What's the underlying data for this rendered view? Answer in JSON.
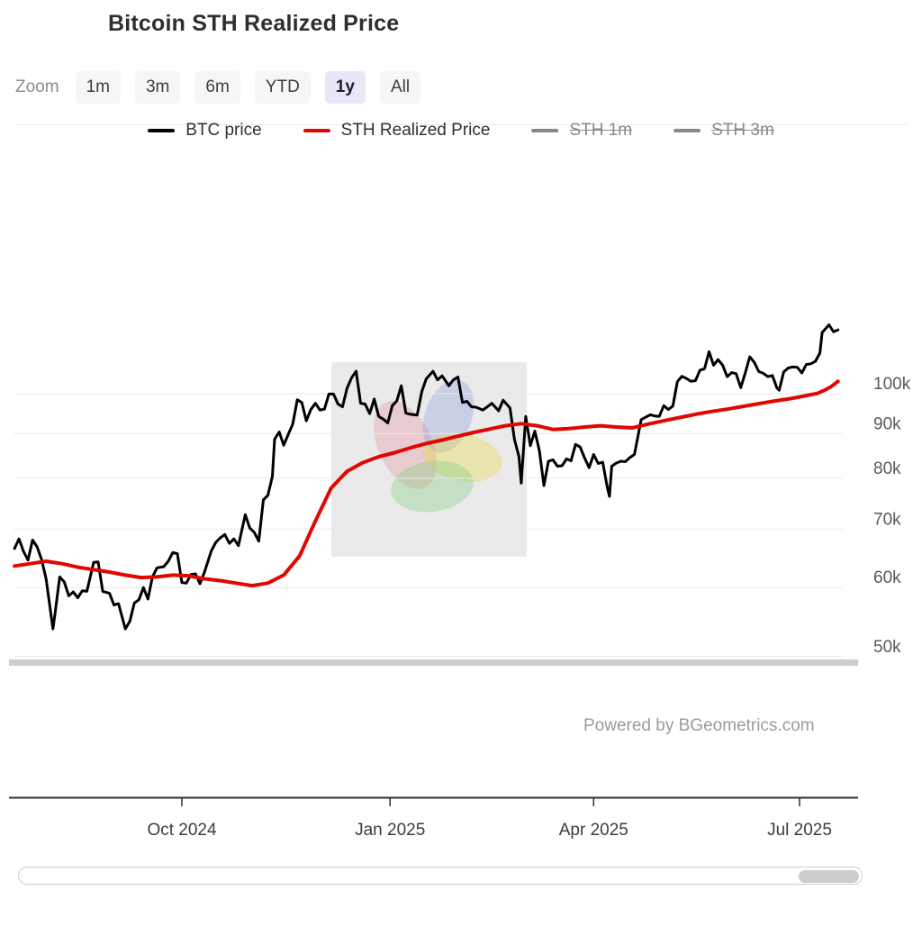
{
  "page": {
    "title": "Bitcoin STH Realized Price"
  },
  "range_selector": {
    "label": "Zoom",
    "buttons": [
      {
        "label": "1m",
        "active": false
      },
      {
        "label": "3m",
        "active": false
      },
      {
        "label": "6m",
        "active": false
      },
      {
        "label": "YTD",
        "active": false
      },
      {
        "label": "1y",
        "active": true
      },
      {
        "label": "All",
        "active": false
      }
    ]
  },
  "legend": {
    "items": [
      {
        "label": "BTC price",
        "color": "#000000",
        "disabled": false
      },
      {
        "label": "STH Realized Price",
        "color": "#e10600",
        "disabled": false
      },
      {
        "label": "STH 1m",
        "color": "#888888",
        "disabled": true
      },
      {
        "label": "STH 3m",
        "color": "#888888",
        "disabled": true
      }
    ]
  },
  "credit": {
    "text": "Powered by BGeometrics.com"
  },
  "colors": {
    "grid": "#e8e8e8",
    "axis": "#2f2f2f",
    "y_label": "#5a5a5a",
    "x_label": "#3d3d3d",
    "bottom_band": "#cdcdcd",
    "active_button_bg": "#e7e7f8"
  },
  "chart_data": {
    "type": "line",
    "title": "Bitcoin STH Realized Price",
    "xlabel": "",
    "ylabel": "",
    "yscale": "log",
    "grid": true,
    "legend_position": "top",
    "ylim": [
      48000,
      125000
    ],
    "y_ticks": [
      {
        "value": 100000,
        "label": "100k"
      },
      {
        "value": 90000,
        "label": "90k"
      },
      {
        "value": 80000,
        "label": "80k"
      },
      {
        "value": 70000,
        "label": "70k"
      },
      {
        "value": 60000,
        "label": "60k"
      },
      {
        "value": 50000,
        "label": "50k"
      }
    ],
    "x_ticks": [
      {
        "date": "2024-10-01",
        "label": "Oct 2024"
      },
      {
        "date": "2025-01-01",
        "label": "Jan 2025"
      },
      {
        "date": "2025-04-01",
        "label": "Apr 2025"
      },
      {
        "date": "2025-07-01",
        "label": "Jul 2025"
      }
    ],
    "layout": {
      "x_anchors": [
        [
          "2024-10-01",
          202
        ],
        [
          "2025-07-01",
          888
        ]
      ],
      "y_anchors": [
        [
          100000,
          437
        ],
        [
          50000,
          729
        ]
      ],
      "plot_x": [
        16,
        935
      ],
      "axis_x": [
        10,
        953
      ],
      "axis_y": 885,
      "y_label_x": 970,
      "x_label_y": 927,
      "bottom_band": {
        "y": 732,
        "height": 7
      }
    },
    "series": [
      {
        "name": "BTC price",
        "color": "#000000",
        "width": 3,
        "visible": true,
        "points": [
          [
            "2024-07-19",
            66500
          ],
          [
            "2024-07-21",
            68200
          ],
          [
            "2024-07-23",
            66000
          ],
          [
            "2024-07-25",
            64500
          ],
          [
            "2024-07-27",
            68000
          ],
          [
            "2024-07-29",
            66800
          ],
          [
            "2024-07-31",
            64600
          ],
          [
            "2024-08-02",
            61400
          ],
          [
            "2024-08-05",
            53800
          ],
          [
            "2024-08-06",
            56200
          ],
          [
            "2024-08-08",
            61700
          ],
          [
            "2024-08-10",
            60900
          ],
          [
            "2024-08-12",
            58700
          ],
          [
            "2024-08-14",
            59300
          ],
          [
            "2024-08-16",
            58400
          ],
          [
            "2024-08-18",
            59500
          ],
          [
            "2024-08-20",
            59400
          ],
          [
            "2024-08-23",
            64100
          ],
          [
            "2024-08-25",
            64200
          ],
          [
            "2024-08-27",
            59400
          ],
          [
            "2024-08-30",
            59100
          ],
          [
            "2024-09-01",
            57300
          ],
          [
            "2024-09-03",
            57500
          ],
          [
            "2024-09-06",
            53800
          ],
          [
            "2024-09-08",
            54900
          ],
          [
            "2024-09-10",
            57600
          ],
          [
            "2024-09-12",
            58100
          ],
          [
            "2024-09-14",
            60000
          ],
          [
            "2024-09-16",
            58200
          ],
          [
            "2024-09-18",
            61700
          ],
          [
            "2024-09-20",
            63200
          ],
          [
            "2024-09-23",
            63400
          ],
          [
            "2024-09-25",
            64300
          ],
          [
            "2024-09-27",
            65800
          ],
          [
            "2024-09-29",
            65600
          ],
          [
            "2024-10-01",
            60800
          ],
          [
            "2024-10-03",
            60700
          ],
          [
            "2024-10-05",
            62100
          ],
          [
            "2024-10-07",
            62200
          ],
          [
            "2024-10-09",
            60600
          ],
          [
            "2024-10-11",
            62500
          ],
          [
            "2024-10-14",
            66100
          ],
          [
            "2024-10-16",
            67600
          ],
          [
            "2024-10-18",
            68400
          ],
          [
            "2024-10-20",
            69000
          ],
          [
            "2024-10-22",
            67400
          ],
          [
            "2024-10-24",
            68200
          ],
          [
            "2024-10-26",
            67000
          ],
          [
            "2024-10-29",
            72700
          ],
          [
            "2024-10-31",
            70200
          ],
          [
            "2024-11-02",
            69400
          ],
          [
            "2024-11-04",
            67800
          ],
          [
            "2024-11-06",
            75600
          ],
          [
            "2024-11-08",
            76500
          ],
          [
            "2024-11-10",
            80400
          ],
          [
            "2024-11-11",
            88700
          ],
          [
            "2024-11-13",
            90400
          ],
          [
            "2024-11-15",
            87300
          ],
          [
            "2024-11-17",
            89800
          ],
          [
            "2024-11-19",
            92300
          ],
          [
            "2024-11-21",
            98400
          ],
          [
            "2024-11-23",
            97700
          ],
          [
            "2024-11-25",
            93100
          ],
          [
            "2024-11-27",
            95900
          ],
          [
            "2024-11-29",
            97500
          ],
          [
            "2024-12-01",
            95800
          ],
          [
            "2024-12-03",
            96000
          ],
          [
            "2024-12-05",
            99900
          ],
          [
            "2024-12-07",
            99900
          ],
          [
            "2024-12-09",
            97300
          ],
          [
            "2024-12-11",
            96600
          ],
          [
            "2024-12-13",
            101400
          ],
          [
            "2024-12-15",
            104300
          ],
          [
            "2024-12-17",
            106100
          ],
          [
            "2024-12-19",
            97500
          ],
          [
            "2024-12-21",
            97300
          ],
          [
            "2024-12-23",
            94900
          ],
          [
            "2024-12-25",
            98600
          ],
          [
            "2024-12-27",
            94200
          ],
          [
            "2024-12-29",
            93500
          ],
          [
            "2024-12-31",
            92600
          ],
          [
            "2025-01-02",
            96900
          ],
          [
            "2025-01-04",
            98100
          ],
          [
            "2025-01-06",
            102100
          ],
          [
            "2025-01-08",
            95000
          ],
          [
            "2025-01-10",
            94700
          ],
          [
            "2025-01-13",
            94500
          ],
          [
            "2025-01-15",
            100500
          ],
          [
            "2025-01-17",
            104000
          ],
          [
            "2025-01-20",
            106100
          ],
          [
            "2025-01-22",
            103700
          ],
          [
            "2025-01-24",
            104800
          ],
          [
            "2025-01-27",
            102100
          ],
          [
            "2025-01-29",
            103700
          ],
          [
            "2025-01-31",
            104500
          ],
          [
            "2025-02-02",
            97700
          ],
          [
            "2025-02-04",
            98000
          ],
          [
            "2025-02-06",
            96600
          ],
          [
            "2025-02-08",
            96500
          ],
          [
            "2025-02-11",
            95800
          ],
          [
            "2025-02-13",
            96600
          ],
          [
            "2025-02-15",
            97500
          ],
          [
            "2025-02-18",
            95600
          ],
          [
            "2025-02-20",
            98300
          ],
          [
            "2025-02-23",
            96300
          ],
          [
            "2025-02-25",
            88600
          ],
          [
            "2025-02-27",
            84700
          ],
          [
            "2025-02-28",
            79000
          ],
          [
            "2025-03-02",
            94200
          ],
          [
            "2025-03-04",
            87200
          ],
          [
            "2025-03-06",
            90600
          ],
          [
            "2025-03-08",
            86100
          ],
          [
            "2025-03-10",
            78500
          ],
          [
            "2025-03-12",
            83700
          ],
          [
            "2025-03-14",
            84000
          ],
          [
            "2025-03-16",
            82600
          ],
          [
            "2025-03-18",
            82700
          ],
          [
            "2025-03-20",
            84200
          ],
          [
            "2025-03-22",
            83800
          ],
          [
            "2025-03-24",
            87500
          ],
          [
            "2025-03-26",
            86900
          ],
          [
            "2025-03-28",
            84400
          ],
          [
            "2025-03-30",
            82300
          ],
          [
            "2025-04-01",
            85200
          ],
          [
            "2025-04-03",
            83200
          ],
          [
            "2025-04-05",
            83500
          ],
          [
            "2025-04-07",
            78200
          ],
          [
            "2025-04-08",
            76300
          ],
          [
            "2025-04-09",
            82600
          ],
          [
            "2025-04-11",
            83300
          ],
          [
            "2025-04-13",
            83700
          ],
          [
            "2025-04-15",
            83600
          ],
          [
            "2025-04-17",
            84500
          ],
          [
            "2025-04-19",
            85200
          ],
          [
            "2025-04-22",
            93400
          ],
          [
            "2025-04-24",
            94000
          ],
          [
            "2025-04-26",
            94600
          ],
          [
            "2025-04-28",
            94300
          ],
          [
            "2025-04-30",
            94200
          ],
          [
            "2025-05-02",
            96900
          ],
          [
            "2025-05-04",
            95900
          ],
          [
            "2025-05-06",
            96800
          ],
          [
            "2025-05-08",
            103200
          ],
          [
            "2025-05-10",
            104700
          ],
          [
            "2025-05-12",
            104100
          ],
          [
            "2025-05-14",
            103300
          ],
          [
            "2025-05-16",
            103500
          ],
          [
            "2025-05-18",
            106400
          ],
          [
            "2025-05-20",
            106800
          ],
          [
            "2025-05-22",
            111700
          ],
          [
            "2025-05-24",
            107800
          ],
          [
            "2025-05-26",
            109400
          ],
          [
            "2025-05-28",
            107800
          ],
          [
            "2025-05-30",
            104600
          ],
          [
            "2025-06-01",
            105700
          ],
          [
            "2025-06-03",
            105400
          ],
          [
            "2025-06-05",
            101600
          ],
          [
            "2025-06-07",
            105600
          ],
          [
            "2025-06-09",
            110200
          ],
          [
            "2025-06-11",
            108600
          ],
          [
            "2025-06-13",
            106000
          ],
          [
            "2025-06-15",
            105500
          ],
          [
            "2025-06-17",
            104600
          ],
          [
            "2025-06-19",
            104900
          ],
          [
            "2025-06-21",
            101500
          ],
          [
            "2025-06-22",
            100900
          ],
          [
            "2025-06-24",
            105900
          ],
          [
            "2025-06-26",
            107000
          ],
          [
            "2025-06-28",
            107300
          ],
          [
            "2025-06-30",
            107200
          ],
          [
            "2025-07-02",
            105600
          ],
          [
            "2025-07-04",
            108000
          ],
          [
            "2025-07-06",
            108200
          ],
          [
            "2025-07-08",
            108900
          ],
          [
            "2025-07-10",
            111300
          ],
          [
            "2025-07-11",
            117500
          ],
          [
            "2025-07-13",
            119100
          ],
          [
            "2025-07-14",
            119900
          ],
          [
            "2025-07-16",
            117700
          ],
          [
            "2025-07-18",
            118300
          ]
        ]
      },
      {
        "name": "STH Realized Price",
        "color": "#e10600",
        "width": 4,
        "visible": true,
        "points": [
          [
            "2024-07-19",
            63500
          ],
          [
            "2024-07-26",
            63900
          ],
          [
            "2024-08-02",
            64300
          ],
          [
            "2024-08-09",
            63900
          ],
          [
            "2024-08-16",
            63300
          ],
          [
            "2024-08-23",
            62900
          ],
          [
            "2024-08-30",
            62500
          ],
          [
            "2024-09-06",
            62000
          ],
          [
            "2024-09-13",
            61600
          ],
          [
            "2024-09-20",
            61700
          ],
          [
            "2024-09-27",
            62000
          ],
          [
            "2024-10-04",
            61900
          ],
          [
            "2024-10-11",
            61400
          ],
          [
            "2024-10-18",
            61100
          ],
          [
            "2024-10-25",
            60700
          ],
          [
            "2024-11-01",
            60300
          ],
          [
            "2024-11-08",
            60700
          ],
          [
            "2024-11-15",
            62000
          ],
          [
            "2024-11-22",
            65200
          ],
          [
            "2024-11-29",
            71500
          ],
          [
            "2024-12-06",
            78000
          ],
          [
            "2024-12-13",
            81500
          ],
          [
            "2024-12-20",
            83400
          ],
          [
            "2024-12-27",
            84700
          ],
          [
            "2025-01-03",
            85600
          ],
          [
            "2025-01-10",
            86700
          ],
          [
            "2025-01-17",
            87700
          ],
          [
            "2025-01-24",
            88500
          ],
          [
            "2025-01-31",
            89400
          ],
          [
            "2025-02-07",
            90300
          ],
          [
            "2025-02-14",
            91100
          ],
          [
            "2025-02-21",
            91900
          ],
          [
            "2025-02-28",
            92400
          ],
          [
            "2025-03-07",
            91900
          ],
          [
            "2025-03-14",
            91000
          ],
          [
            "2025-03-21",
            91200
          ],
          [
            "2025-03-28",
            91600
          ],
          [
            "2025-04-04",
            91900
          ],
          [
            "2025-04-11",
            91600
          ],
          [
            "2025-04-18",
            91400
          ],
          [
            "2025-04-25",
            92300
          ],
          [
            "2025-05-02",
            93100
          ],
          [
            "2025-05-09",
            93900
          ],
          [
            "2025-05-16",
            94700
          ],
          [
            "2025-05-23",
            95400
          ],
          [
            "2025-05-30",
            96000
          ],
          [
            "2025-06-06",
            96700
          ],
          [
            "2025-06-13",
            97400
          ],
          [
            "2025-06-20",
            98100
          ],
          [
            "2025-06-27",
            98700
          ],
          [
            "2025-07-04",
            99500
          ],
          [
            "2025-07-09",
            100100
          ],
          [
            "2025-07-12",
            100900
          ],
          [
            "2025-07-15",
            101900
          ],
          [
            "2025-07-18",
            103300
          ]
        ]
      },
      {
        "name": "STH 1m",
        "color": "#888888",
        "width": 3,
        "visible": false,
        "points": []
      },
      {
        "name": "STH 3m",
        "color": "#888888",
        "width": 3,
        "visible": false,
        "points": []
      }
    ]
  }
}
